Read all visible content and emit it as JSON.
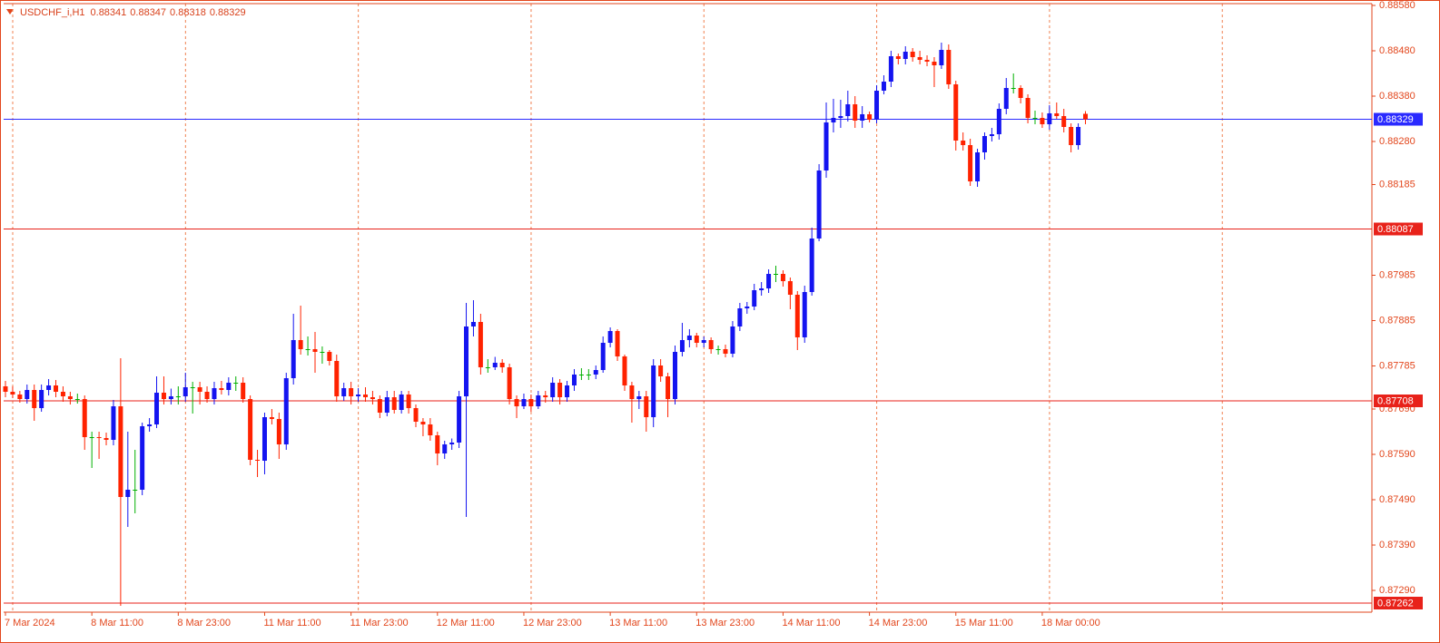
{
  "chart_data": {
    "type": "candlestick",
    "symbol": "USDCHF_i,H1",
    "categories": [
      "7 Mar 2024",
      null,
      null,
      null,
      null,
      null,
      null,
      null,
      null,
      null,
      null,
      null,
      "8 Mar 11:00",
      null,
      null,
      null,
      null,
      null,
      null,
      null,
      null,
      null,
      null,
      null,
      "8 Mar 23:00",
      null,
      null,
      null,
      null,
      null,
      null,
      null,
      null,
      null,
      null,
      null,
      "11 Mar 11:00",
      null,
      null,
      null,
      null,
      null,
      null,
      null,
      null,
      null,
      null,
      null,
      "11 Mar 23:00",
      null,
      null,
      null,
      null,
      null,
      null,
      null,
      null,
      null,
      null,
      null,
      "12 Mar 11:00",
      null,
      null,
      null,
      null,
      null,
      null,
      null,
      null,
      null,
      null,
      null,
      "12 Mar 23:00",
      null,
      null,
      null,
      null,
      null,
      null,
      null,
      null,
      null,
      null,
      null,
      "13 Mar 11:00",
      null,
      null,
      null,
      null,
      null,
      null,
      null,
      null,
      null,
      null,
      null,
      "13 Mar 23:00",
      null,
      null,
      null,
      null,
      null,
      null,
      null,
      null,
      null,
      null,
      null,
      "14 Mar 11:00",
      null,
      null,
      null,
      null,
      null,
      null,
      null,
      null,
      null,
      null,
      null,
      "14 Mar 23:00",
      null,
      null,
      null,
      null,
      null,
      null,
      null,
      null,
      null,
      null,
      null,
      "15 Mar 11:00",
      null,
      null,
      null,
      null,
      null,
      null,
      null,
      null,
      null,
      null,
      null,
      "18 Mar 00:00",
      null,
      null,
      null,
      null,
      null,
      null
    ],
    "open": [
      0.8774,
      0.87728,
      0.87722,
      0.87712,
      0.87732,
      0.87692,
      0.87732,
      0.87742,
      0.87728,
      0.87718,
      0.87712,
      0.87712,
      0.87628,
      0.87628,
      0.87626,
      0.87622,
      0.87696,
      0.87496,
      0.87512,
      0.87512,
      0.87652,
      0.87656,
      0.87726,
      0.87712,
      0.87718,
      0.87718,
      0.87738,
      0.87738,
      0.87728,
      0.87712,
      0.87736,
      0.87732,
      0.87748,
      0.87748,
      0.87712,
      0.87578,
      0.87576,
      0.87672,
      0.87668,
      0.87612,
      0.87758,
      0.87842,
      0.87822,
      0.87822,
      0.87816,
      0.87816,
      0.87796,
      0.87718,
      0.87736,
      0.87718,
      0.87722,
      0.87716,
      0.87712,
      0.87682,
      0.87716,
      0.87688,
      0.87722,
      0.87692,
      0.87662,
      0.87656,
      0.87632,
      0.87592,
      0.87612,
      0.87616,
      0.87718,
      0.87872,
      0.87882,
      0.87782,
      0.87782,
      0.87792,
      0.87782,
      0.87712,
      0.87696,
      0.87712,
      0.87696,
      0.8772,
      0.87716,
      0.87748,
      0.87716,
      0.87742,
      0.87766,
      0.87766,
      0.87766,
      0.87776,
      0.87836,
      0.87862,
      0.87806,
      0.87742,
      0.87712,
      0.87718,
      0.87672,
      0.87786,
      0.87762,
      0.87712,
      0.87816,
      0.87842,
      0.87852,
      0.87836,
      0.87842,
      0.87822,
      0.87822,
      0.87812,
      0.87872,
      0.87912,
      0.87916,
      0.87952,
      0.87956,
      0.87988,
      0.87988,
      0.87972,
      0.87942,
      0.87848,
      0.87948,
      0.88066,
      0.88216,
      0.88322,
      0.88332,
      0.88336,
      0.88362,
      0.88326,
      0.8834,
      0.88328,
      0.88392,
      0.88412,
      0.88468,
      0.88462,
      0.88478,
      0.88466,
      0.8846,
      0.88456,
      0.88448,
      0.88482,
      0.88406,
      0.88282,
      0.88272,
      0.88192,
      0.88256,
      0.88292,
      0.88296,
      0.88352,
      0.88398,
      0.88398,
      0.88376,
      0.88332,
      0.88332,
      0.88318,
      0.88342,
      0.88336,
      0.88312,
      0.88272,
      0.88341
    ],
    "high": [
      0.87752,
      0.8774,
      0.8773,
      0.87744,
      0.87744,
      0.87744,
      0.87756,
      0.87754,
      0.8774,
      0.87728,
      0.87724,
      0.8772,
      0.8764,
      0.8764,
      0.87638,
      0.8771,
      0.87802,
      0.8764,
      0.876,
      0.8766,
      0.8767,
      0.87762,
      0.87762,
      0.87735,
      0.8774,
      0.8777,
      0.8775,
      0.8775,
      0.8774,
      0.8775,
      0.87752,
      0.8776,
      0.87762,
      0.8776,
      0.8772,
      0.876,
      0.87682,
      0.8769,
      0.87682,
      0.8777,
      0.879,
      0.87918,
      0.8785,
      0.8786,
      0.87828,
      0.8782,
      0.8781,
      0.87748,
      0.8775,
      0.87736,
      0.87738,
      0.8773,
      0.8772,
      0.8773,
      0.8773,
      0.8773,
      0.8773,
      0.877,
      0.8767,
      0.8767,
      0.8764,
      0.8762,
      0.87625,
      0.8773,
      0.87924,
      0.8793,
      0.879,
      0.878,
      0.87805,
      0.878,
      0.8779,
      0.8772,
      0.87724,
      0.87722,
      0.8773,
      0.8773,
      0.8776,
      0.87756,
      0.87752,
      0.87778,
      0.8778,
      0.87778,
      0.87786,
      0.8785,
      0.8787,
      0.87866,
      0.8781,
      0.8775,
      0.8773,
      0.8773,
      0.878,
      0.878,
      0.8777,
      0.8783,
      0.8788,
      0.87866,
      0.87858,
      0.8785,
      0.87848,
      0.8783,
      0.87832,
      0.87884,
      0.87924,
      0.87926,
      0.87966,
      0.8797,
      0.87998,
      0.88006,
      0.87996,
      0.8798,
      0.8795,
      0.87962,
      0.8809,
      0.8823,
      0.88366,
      0.88374,
      0.88372,
      0.88392,
      0.8838,
      0.88358,
      0.88346,
      0.88404,
      0.88426,
      0.8848,
      0.88474,
      0.8849,
      0.88486,
      0.8848,
      0.8847,
      0.88466,
      0.88498,
      0.88494,
      0.88414,
      0.883,
      0.88286,
      0.88264,
      0.883,
      0.8831,
      0.88364,
      0.8842,
      0.8843,
      0.88404,
      0.88384,
      0.88348,
      0.88344,
      0.8836,
      0.88366,
      0.88352,
      0.8832,
      0.8832,
      0.88347
    ],
    "low": [
      0.87716,
      0.87714,
      0.87704,
      0.87702,
      0.87664,
      0.87684,
      0.8772,
      0.87716,
      0.87706,
      0.877,
      0.87702,
      0.876,
      0.8756,
      0.8758,
      0.8761,
      0.8761,
      0.87256,
      0.8743,
      0.8746,
      0.875,
      0.8764,
      0.87648,
      0.877,
      0.877,
      0.877,
      0.87706,
      0.8768,
      0.877,
      0.87704,
      0.877,
      0.87722,
      0.8772,
      0.8773,
      0.87704,
      0.87566,
      0.8754,
      0.87546,
      0.87656,
      0.8758,
      0.876,
      0.87744,
      0.8781,
      0.87808,
      0.8777,
      0.8779,
      0.87786,
      0.87706,
      0.87708,
      0.877,
      0.87706,
      0.87706,
      0.877,
      0.8767,
      0.87674,
      0.8768,
      0.8768,
      0.8768,
      0.8765,
      0.8763,
      0.8762,
      0.87566,
      0.8758,
      0.876,
      0.87604,
      0.87452,
      0.8785,
      0.87766,
      0.8777,
      0.87776,
      0.8777,
      0.877,
      0.8767,
      0.8769,
      0.87684,
      0.8769,
      0.87704,
      0.87706,
      0.877,
      0.87706,
      0.8773,
      0.87754,
      0.87754,
      0.87756,
      0.8777,
      0.87826,
      0.87796,
      0.8773,
      0.8766,
      0.8769,
      0.8764,
      0.8765,
      0.8775,
      0.87672,
      0.877,
      0.87806,
      0.87826,
      0.87826,
      0.87826,
      0.87812,
      0.8781,
      0.87804,
      0.87804,
      0.87862,
      0.879,
      0.87908,
      0.8794,
      0.87946,
      0.8797,
      0.8796,
      0.8791,
      0.8782,
      0.87836,
      0.8794,
      0.8806,
      0.882,
      0.883,
      0.8831,
      0.88324,
      0.8831,
      0.8831,
      0.88322,
      0.8832,
      0.88384,
      0.884,
      0.8845,
      0.8845,
      0.88456,
      0.8845,
      0.88446,
      0.884,
      0.8844,
      0.88396,
      0.8826,
      0.8826,
      0.88182,
      0.8818,
      0.8824,
      0.8828,
      0.88284,
      0.8834,
      0.88386,
      0.88364,
      0.8832,
      0.88318,
      0.8831,
      0.88306,
      0.8833,
      0.883,
      0.88256,
      0.88262,
      0.88318
    ],
    "close": [
      0.87728,
      0.87722,
      0.87712,
      0.87732,
      0.87692,
      0.87732,
      0.87742,
      0.87728,
      0.87718,
      0.87712,
      0.87712,
      0.87628,
      0.87628,
      0.87626,
      0.87622,
      0.87696,
      0.87496,
      0.87512,
      0.87512,
      0.87652,
      0.87656,
      0.87726,
      0.87712,
      0.87718,
      0.87718,
      0.87738,
      0.87738,
      0.87728,
      0.87712,
      0.87736,
      0.87732,
      0.87748,
      0.87748,
      0.87712,
      0.87578,
      0.87576,
      0.87672,
      0.87668,
      0.87612,
      0.87758,
      0.87842,
      0.87822,
      0.87822,
      0.87816,
      0.87816,
      0.87796,
      0.87718,
      0.87736,
      0.87718,
      0.87722,
      0.87716,
      0.87712,
      0.87682,
      0.87716,
      0.87688,
      0.87722,
      0.87692,
      0.87662,
      0.87656,
      0.87632,
      0.87592,
      0.87612,
      0.87616,
      0.87718,
      0.87872,
      0.87882,
      0.87782,
      0.87782,
      0.87792,
      0.87782,
      0.87712,
      0.87696,
      0.87712,
      0.87696,
      0.8772,
      0.87716,
      0.87748,
      0.87716,
      0.87742,
      0.87766,
      0.87766,
      0.87766,
      0.87776,
      0.87836,
      0.87862,
      0.87806,
      0.87742,
      0.87712,
      0.87718,
      0.87672,
      0.87786,
      0.87762,
      0.87712,
      0.87816,
      0.87842,
      0.87852,
      0.87836,
      0.87842,
      0.87822,
      0.87822,
      0.87812,
      0.87872,
      0.87912,
      0.87916,
      0.87952,
      0.87956,
      0.87988,
      0.87988,
      0.87972,
      0.87942,
      0.87848,
      0.87948,
      0.88066,
      0.88216,
      0.88322,
      0.88332,
      0.88336,
      0.88362,
      0.88326,
      0.8834,
      0.88328,
      0.88392,
      0.88412,
      0.88468,
      0.88462,
      0.88478,
      0.88466,
      0.8846,
      0.88456,
      0.88448,
      0.88482,
      0.88406,
      0.88282,
      0.88272,
      0.88192,
      0.88256,
      0.88292,
      0.88296,
      0.88352,
      0.88398,
      0.88398,
      0.88376,
      0.88332,
      0.88332,
      0.88318,
      0.88342,
      0.88336,
      0.88312,
      0.88272,
      0.88312,
      0.88329
    ],
    "bull_color": "#1414f0",
    "bear_color": "#ff2200",
    "doji_color": "#00b000",
    "ylim": [
      0.87242,
      0.88584
    ],
    "yticks": [
      {
        "value": 0.8858,
        "label": "0.88580"
      },
      {
        "value": 0.8848,
        "label": "0.88480"
      },
      {
        "value": 0.8838,
        "label": "0.88380"
      },
      {
        "value": 0.8828,
        "label": "0.88280"
      },
      0.88185,
      0.87985,
      0.87885,
      0.87785,
      {
        "value": 0.8769,
        "label": "0.87690"
      },
      {
        "value": 0.8759,
        "label": "0.87590"
      },
      {
        "value": 0.8749,
        "label": "0.87490"
      },
      {
        "value": 0.8739,
        "label": "0.87390"
      },
      {
        "value": 0.8729,
        "label": "0.87290"
      }
    ],
    "grid": true,
    "hlines": [
      {
        "value": 0.88329,
        "color": "#2a2aff"
      },
      {
        "value": 0.88087,
        "color": "#e8221a"
      },
      {
        "value": 0.87708,
        "color": "#e8221a"
      },
      {
        "value": 0.87262,
        "color": "#e8221a"
      }
    ]
  }
}
